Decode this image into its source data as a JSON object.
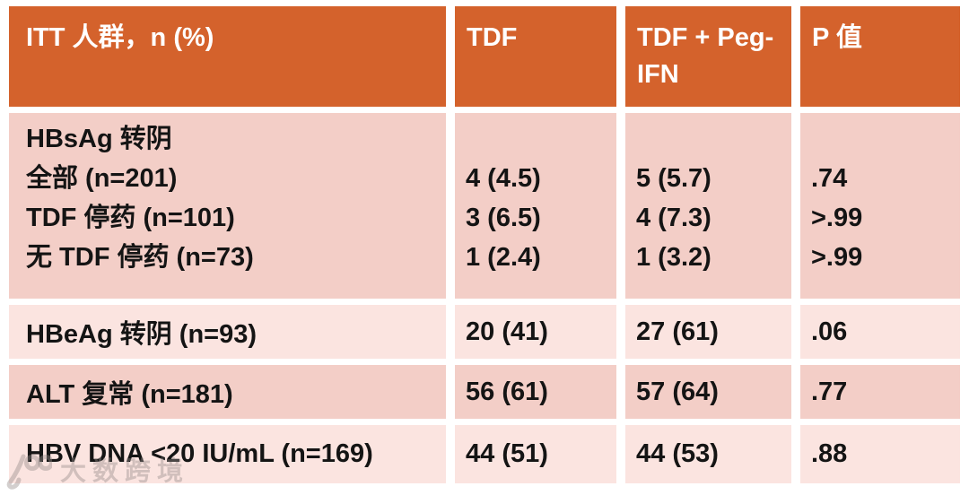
{
  "table": {
    "header": [
      "ITT 人群，n (%)",
      "TDF",
      "TDF + Peg-IFN",
      "P 值"
    ],
    "rows": [
      {
        "shade": "dark",
        "lines": [
          [
            "HBsAg 转阴",
            "",
            "",
            ""
          ],
          [
            "全部 (n=201)",
            "4 (4.5)",
            "5 (5.7)",
            ".74"
          ],
          [
            "TDF 停药 (n=101)",
            "3 (6.5)",
            "4 (7.3)",
            ">.99"
          ],
          [
            "无 TDF 停药 (n=73)",
            "1 (2.4)",
            "1 (3.2)",
            ">.99"
          ]
        ]
      },
      {
        "shade": "light",
        "lines": [
          [
            "HBeAg 转阴 (n=93)",
            "20 (41)",
            "27 (61)",
            ".06"
          ]
        ]
      },
      {
        "shade": "dark",
        "lines": [
          [
            "ALT 复常 (n=181)",
            "56 (61)",
            "57 (64)",
            ".77"
          ]
        ]
      },
      {
        "shade": "light",
        "lines": [
          [
            "HBV DNA <20 IU/mL (n=169)",
            "44 (51)",
            "44 (53)",
            ".88"
          ]
        ]
      }
    ]
  },
  "watermark": {
    "text": "大数跨境"
  },
  "colors": {
    "header_bg": "#d4622c",
    "row_dark": "#f3cec7",
    "row_light": "#fbe4e0",
    "header_text": "#ffffff",
    "body_text": "#141414",
    "page_bg": "#ffffff"
  }
}
